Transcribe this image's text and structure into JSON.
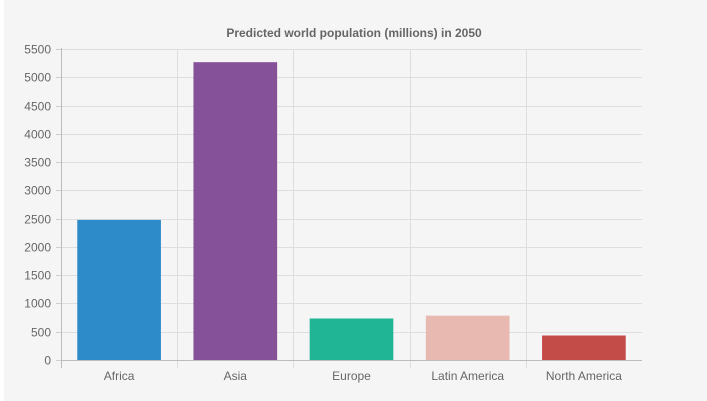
{
  "chart_data": {
    "type": "bar",
    "title": "Predicted world population (millions) in 2050",
    "categories": [
      "Africa",
      "Asia",
      "Europe",
      "Latin America",
      "North America"
    ],
    "values": [
      2478,
      5267,
      734,
      784,
      433
    ],
    "colors": [
      "#2e8bc9",
      "#85529a",
      "#1fb595",
      "#e8b9b0",
      "#c44c48"
    ],
    "xlabel": "",
    "ylabel": "",
    "ylim": [
      0,
      5500
    ],
    "yticks": [
      0,
      500,
      1000,
      1500,
      2000,
      2500,
      3000,
      3500,
      4000,
      4500,
      5000,
      5500
    ],
    "grid": true,
    "legend": "none"
  }
}
